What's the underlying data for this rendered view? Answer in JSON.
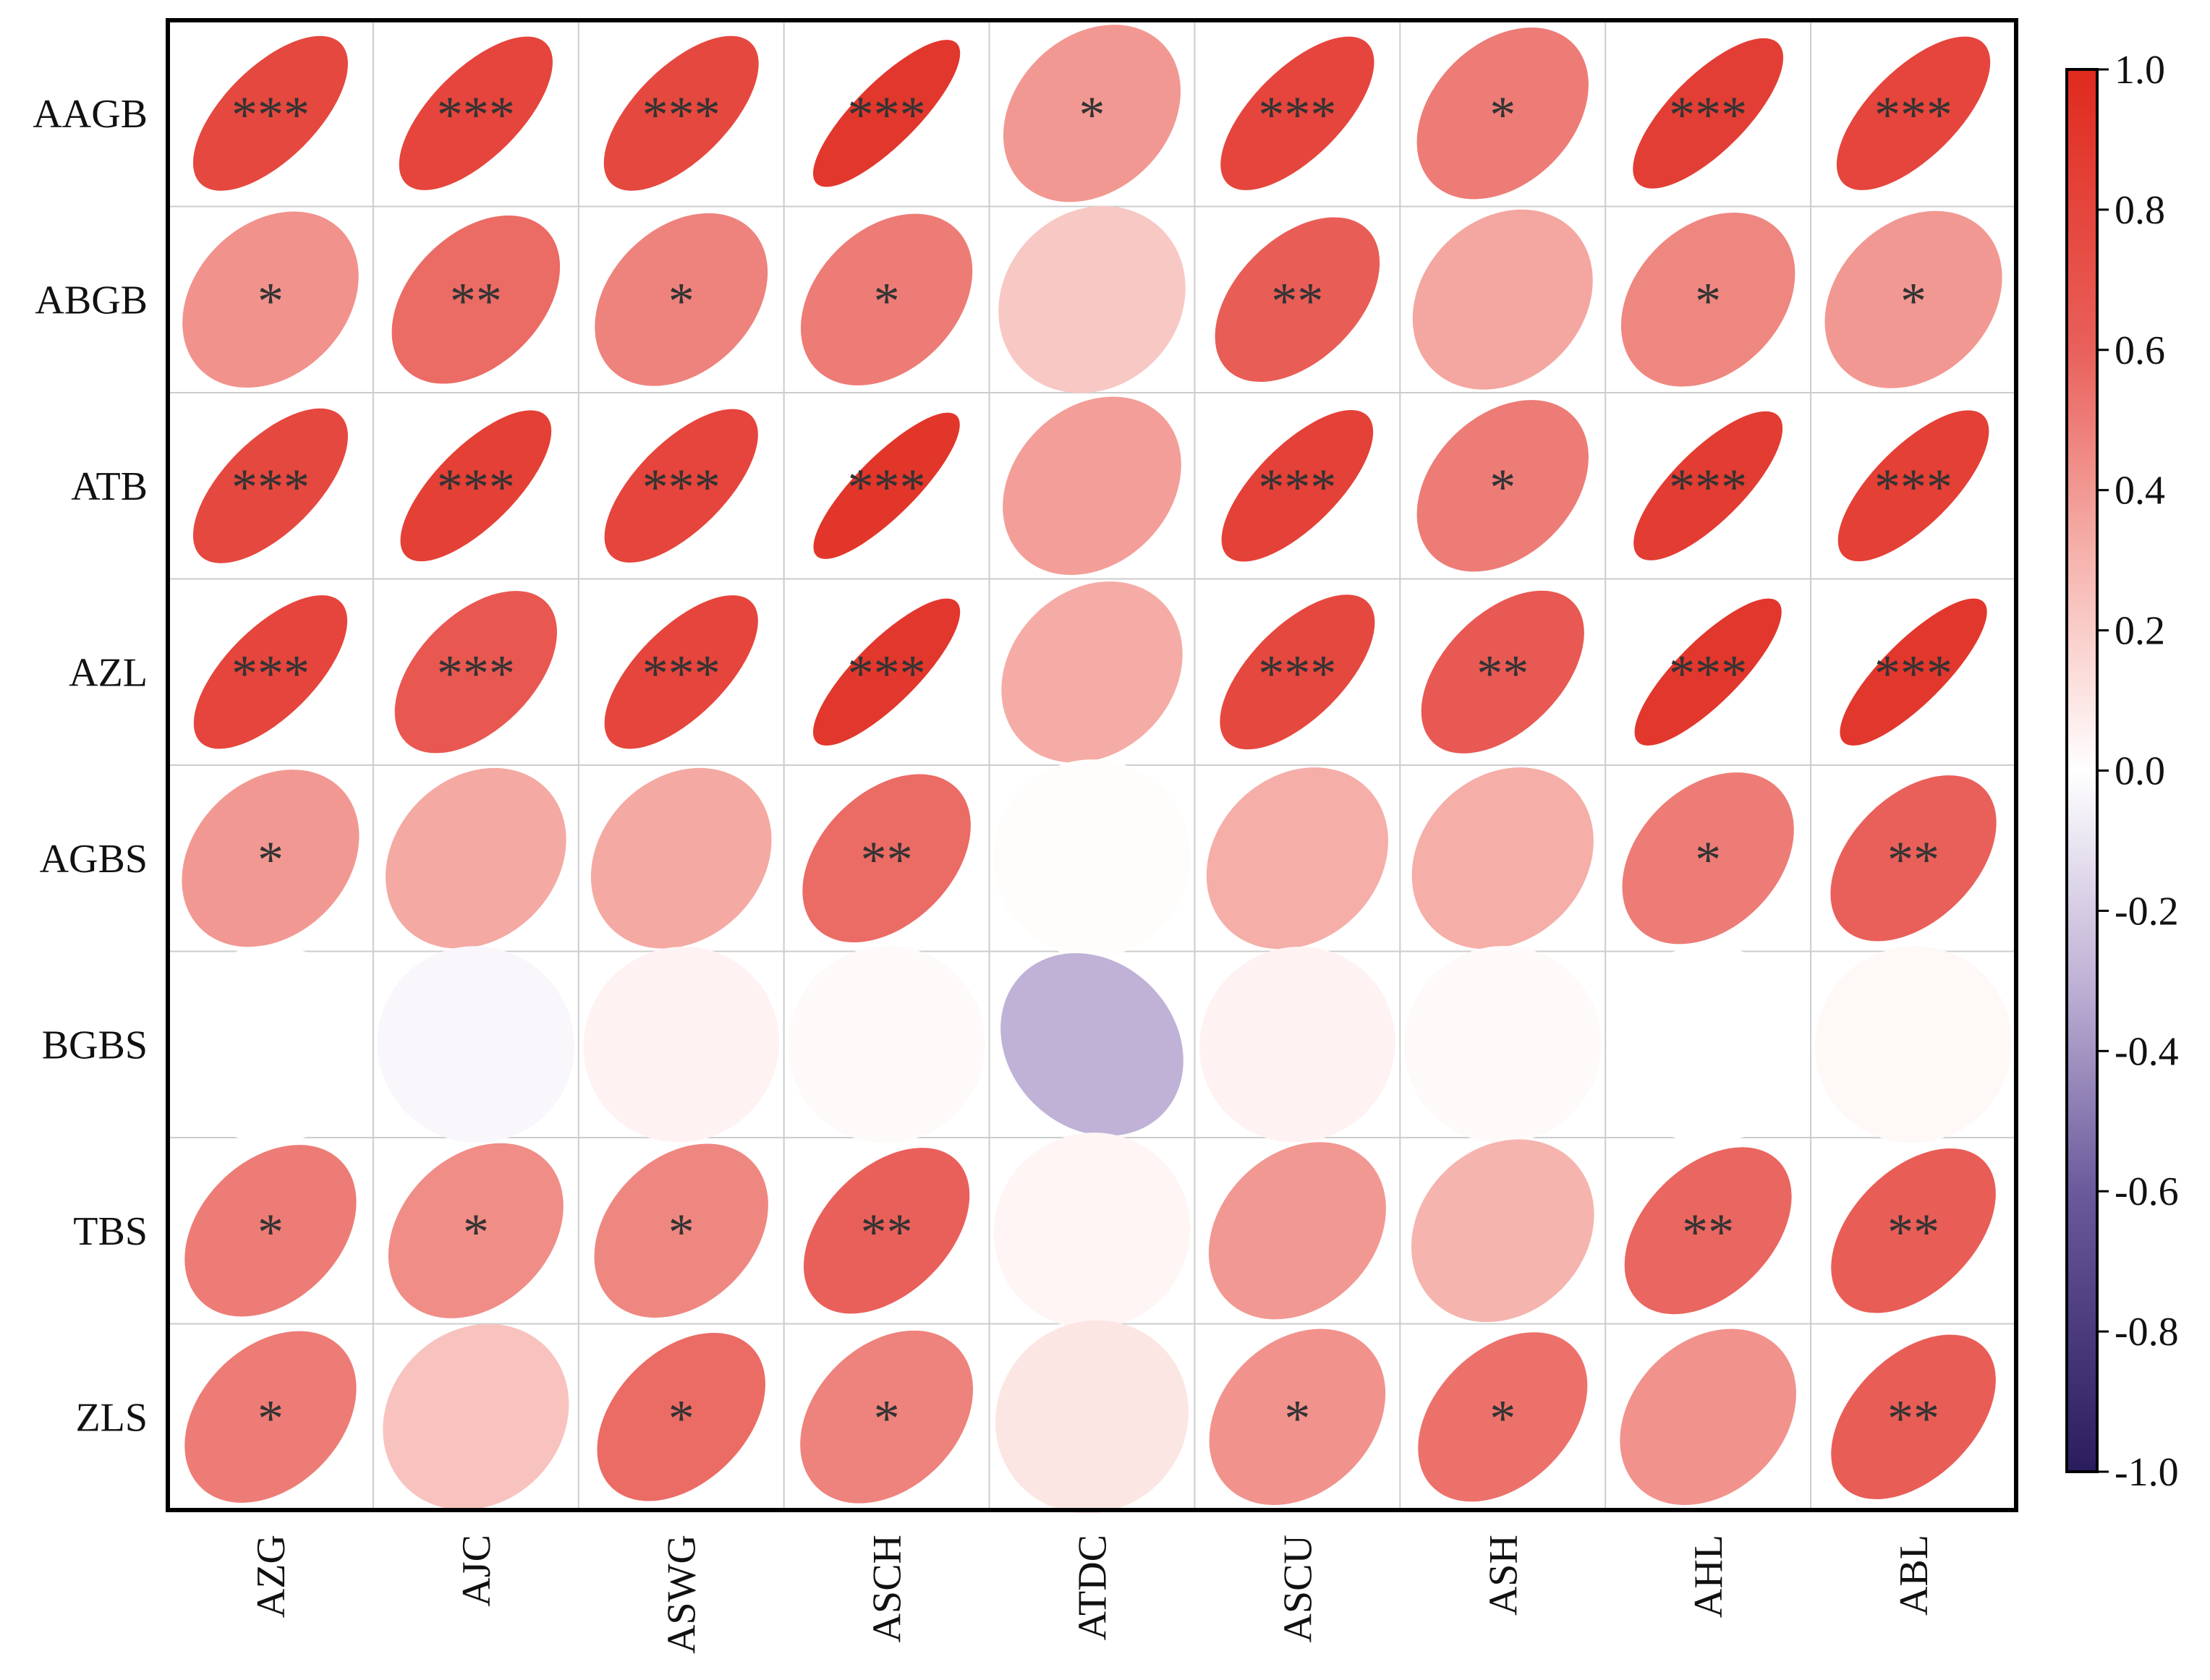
{
  "chart_data": {
    "type": "heatmap",
    "subtype": "correlation-ellipse",
    "title": "",
    "xlabel": "",
    "ylabel": "",
    "x": [
      "AZG",
      "AJC",
      "ASWG",
      "ASCH",
      "ATDC",
      "ASCU",
      "ASH",
      "AHL",
      "ABL"
    ],
    "y": [
      "AAGB",
      "ABGB",
      "ATB",
      "AZL",
      "AGBS",
      "BGBS",
      "TBS",
      "ZLS"
    ],
    "values": [
      [
        0.78,
        0.8,
        0.78,
        0.9,
        0.4,
        0.8,
        0.5,
        0.85,
        0.8
      ],
      [
        0.42,
        0.56,
        0.48,
        0.5,
        0.22,
        0.62,
        0.35,
        0.46,
        0.4
      ],
      [
        0.78,
        0.84,
        0.8,
        0.91,
        0.38,
        0.83,
        0.5,
        0.87,
        0.84
      ],
      [
        0.8,
        0.66,
        0.8,
        0.9,
        0.33,
        0.78,
        0.65,
        0.9,
        0.9
      ],
      [
        0.4,
        0.34,
        0.34,
        0.56,
        0.01,
        0.32,
        0.32,
        0.5,
        0.6
      ],
      [
        0.0,
        -0.03,
        0.05,
        0.02,
        -0.3,
        0.05,
        0.02,
        0.0,
        0.03
      ],
      [
        0.5,
        0.44,
        0.46,
        0.6,
        0.04,
        0.4,
        0.3,
        0.58,
        0.62
      ],
      [
        0.5,
        0.24,
        0.56,
        0.48,
        0.1,
        0.42,
        0.54,
        0.42,
        0.62
      ]
    ],
    "significance": [
      [
        "***",
        "***",
        "***",
        "***",
        "*",
        "***",
        "*",
        "***",
        "***"
      ],
      [
        "*",
        "**",
        "*",
        "*",
        "",
        "**",
        "",
        "*",
        "*"
      ],
      [
        "***",
        "***",
        "***",
        "***",
        "",
        "***",
        "*",
        "***",
        "***"
      ],
      [
        "***",
        "***",
        "***",
        "***",
        "",
        "***",
        "**",
        "***",
        "***"
      ],
      [
        "*",
        "",
        "",
        "**",
        "",
        "",
        "",
        "*",
        "**"
      ],
      [
        "",
        "",
        "",
        "",
        "",
        "",
        "",
        "",
        ""
      ],
      [
        "*",
        "*",
        "*",
        "**",
        "",
        "",
        "",
        "**",
        "**"
      ],
      [
        "*",
        "",
        "*",
        "*",
        "",
        "*",
        "*",
        "",
        "**"
      ]
    ],
    "colorbar": {
      "range": [
        -1.0,
        1.0
      ],
      "ticks": [
        "1.0",
        "0.8",
        "0.6",
        "0.4",
        "0.2",
        "0.0",
        "-0.2",
        "-0.4",
        "-0.6",
        "-0.8",
        "-1.0"
      ],
      "stops": [
        {
          "value": -1.0,
          "color": "#2b1c5e"
        },
        {
          "value": -0.6,
          "color": "#6a5a9c"
        },
        {
          "value": -0.3,
          "color": "#c0b2d6"
        },
        {
          "value": 0.0,
          "color": "#ffffff"
        },
        {
          "value": 0.3,
          "color": "#f6b4ae"
        },
        {
          "value": 0.6,
          "color": "#e9605a"
        },
        {
          "value": 1.0,
          "color": "#e02a1e"
        }
      ]
    },
    "grid": true,
    "colors": {
      "border": "#000000",
      "grid": "#cccccc",
      "star": "#333333"
    }
  }
}
